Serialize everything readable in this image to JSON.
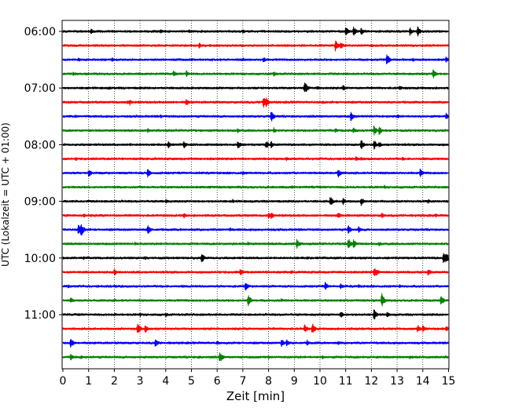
{
  "chart_data": {
    "type": "line",
    "title": "",
    "xlabel": "Zeit  [min]",
    "ylabel": "UTC (Lokalzeit = UTC + 01:00)",
    "xlim": [
      0,
      15
    ],
    "xticks": [
      "0",
      "1",
      "2",
      "3",
      "4",
      "5",
      "6",
      "7",
      "8",
      "9",
      "10",
      "11",
      "12",
      "13",
      "14",
      "15"
    ],
    "grid": "vertical dotted",
    "ytick_labels": [
      "06:00",
      "07:00",
      "08:00",
      "09:00",
      "10:00",
      "11:00"
    ],
    "trace_start_times": [
      "06:00",
      "06:15",
      "06:30",
      "06:45",
      "07:00",
      "07:15",
      "07:30",
      "07:45",
      "08:00",
      "08:15",
      "08:30",
      "08:45",
      "09:00",
      "09:15",
      "09:30",
      "09:45",
      "10:00",
      "10:15",
      "10:30",
      "10:45",
      "11:00",
      "11:15",
      "11:30",
      "11:45"
    ],
    "trace_colors": [
      "#000000",
      "#ff0000",
      "#0000ff",
      "#008000"
    ],
    "events": [
      [
        [
          1.1,
          0.5
        ],
        [
          3.8,
          0.4
        ],
        [
          4.9,
          0.35
        ],
        [
          7.0,
          0.4
        ],
        [
          11.0,
          0.8
        ],
        [
          11.3,
          0.9
        ],
        [
          11.6,
          0.6
        ],
        [
          13.5,
          0.7
        ],
        [
          13.8,
          0.8
        ]
      ],
      [
        [
          5.3,
          0.5
        ],
        [
          10.6,
          1.0
        ],
        [
          10.8,
          0.7
        ],
        [
          12.0,
          0.3
        ]
      ],
      [
        [
          0.6,
          0.35
        ],
        [
          1.9,
          0.4
        ],
        [
          7.0,
          0.35
        ],
        [
          7.8,
          0.5
        ],
        [
          12.6,
          1.0
        ],
        [
          13.6,
          0.35
        ],
        [
          14.9,
          0.5
        ]
      ],
      [
        [
          0.4,
          0.35
        ],
        [
          4.3,
          0.5
        ],
        [
          4.8,
          0.55
        ],
        [
          8.2,
          0.5
        ],
        [
          14.4,
          0.8
        ]
      ],
      [
        [
          1.8,
          0.3
        ],
        [
          3.0,
          0.3
        ],
        [
          9.4,
          1.1
        ],
        [
          9.9,
          0.4
        ],
        [
          10.9,
          0.5
        ],
        [
          13.1,
          0.4
        ]
      ],
      [
        [
          2.5,
          0.35
        ],
        [
          2.6,
          0.5
        ],
        [
          4.8,
          0.6
        ],
        [
          7.8,
          1.0
        ],
        [
          7.9,
          0.8
        ],
        [
          10.1,
          0.3
        ]
      ],
      [
        [
          0.5,
          0.3
        ],
        [
          3.8,
          0.35
        ],
        [
          8.1,
          0.9
        ],
        [
          11.2,
          0.8
        ],
        [
          13.0,
          0.4
        ],
        [
          14.9,
          0.6
        ]
      ],
      [
        [
          3.3,
          0.35
        ],
        [
          6.8,
          0.4
        ],
        [
          8.2,
          0.5
        ],
        [
          10.6,
          0.4
        ],
        [
          11.3,
          0.5
        ],
        [
          12.1,
          0.8
        ],
        [
          12.3,
          0.7
        ]
      ],
      [
        [
          2.6,
          0.3
        ],
        [
          4.1,
          0.6
        ],
        [
          4.7,
          0.6
        ],
        [
          6.8,
          0.8
        ],
        [
          7.9,
          0.7
        ],
        [
          8.1,
          0.6
        ],
        [
          11.6,
          0.8
        ],
        [
          12.1,
          0.8
        ],
        [
          12.3,
          0.5
        ]
      ],
      [
        [
          0.5,
          0.35
        ],
        [
          3.6,
          0.3
        ],
        [
          8.7,
          0.3
        ],
        [
          11.4,
          0.4
        ],
        [
          11.6,
          0.3
        ],
        [
          13.2,
          0.35
        ]
      ],
      [
        [
          1.0,
          0.7
        ],
        [
          3.3,
          0.8
        ],
        [
          7.0,
          0.35
        ],
        [
          10.7,
          0.8
        ],
        [
          13.9,
          0.7
        ]
      ],
      [
        [
          2.0,
          0.3
        ],
        [
          5.7,
          0.3
        ],
        [
          8.9,
          0.3
        ],
        [
          9.7,
          0.3
        ],
        [
          12.5,
          0.35
        ]
      ],
      [
        [
          4.0,
          0.4
        ],
        [
          6.6,
          0.35
        ],
        [
          10.4,
          0.8
        ],
        [
          10.9,
          0.6
        ],
        [
          11.6,
          0.7
        ],
        [
          14.2,
          0.4
        ]
      ],
      [
        [
          0.8,
          0.4
        ],
        [
          4.7,
          0.5
        ],
        [
          8.0,
          0.5
        ],
        [
          8.1,
          0.6
        ],
        [
          10.7,
          0.6
        ],
        [
          12.4,
          0.5
        ],
        [
          14.5,
          0.3
        ]
      ],
      [
        [
          0.6,
          0.9
        ],
        [
          0.7,
          1.1
        ],
        [
          3.3,
          0.8
        ],
        [
          6.5,
          0.35
        ],
        [
          11.1,
          0.7
        ],
        [
          11.5,
          0.6
        ]
      ],
      [
        [
          2.8,
          0.35
        ],
        [
          7.2,
          0.35
        ],
        [
          9.1,
          0.8
        ],
        [
          11.1,
          0.9
        ],
        [
          11.3,
          0.7
        ],
        [
          12.3,
          0.4
        ]
      ],
      [
        [
          0.8,
          0.3
        ],
        [
          3.2,
          0.35
        ],
        [
          5.4,
          0.8
        ],
        [
          9.5,
          0.3
        ],
        [
          14.8,
          1.1
        ],
        [
          14.9,
          0.9
        ]
      ],
      [
        [
          2.0,
          0.6
        ],
        [
          6.9,
          0.6
        ],
        [
          8.9,
          0.35
        ],
        [
          12.1,
          0.8
        ],
        [
          12.2,
          0.6
        ],
        [
          14.2,
          0.6
        ]
      ],
      [
        [
          0.2,
          0.35
        ],
        [
          7.1,
          0.7
        ],
        [
          10.2,
          0.7
        ],
        [
          10.8,
          0.5
        ],
        [
          11.5,
          0.35
        ],
        [
          13.1,
          0.3
        ]
      ],
      [
        [
          0.3,
          0.5
        ],
        [
          2.0,
          0.35
        ],
        [
          7.2,
          1.0
        ],
        [
          8.5,
          0.35
        ],
        [
          12.4,
          1.1
        ],
        [
          14.7,
          0.9
        ]
      ],
      [
        [
          2.0,
          0.3
        ],
        [
          3.0,
          0.35
        ],
        [
          4.0,
          0.4
        ],
        [
          10.8,
          0.6
        ],
        [
          12.1,
          0.9
        ],
        [
          12.6,
          0.5
        ]
      ],
      [
        [
          2.9,
          1.0
        ],
        [
          3.2,
          0.7
        ],
        [
          9.4,
          0.7
        ],
        [
          9.7,
          0.9
        ],
        [
          13.8,
          0.7
        ],
        [
          14.0,
          0.6
        ],
        [
          14.9,
          0.5
        ]
      ],
      [
        [
          0.3,
          0.9
        ],
        [
          3.6,
          0.8
        ],
        [
          6.0,
          0.4
        ],
        [
          8.5,
          0.7
        ],
        [
          8.7,
          0.6
        ],
        [
          9.5,
          0.5
        ],
        [
          10.7,
          0.35
        ]
      ],
      [
        [
          0.3,
          0.6
        ],
        [
          0.7,
          0.35
        ],
        [
          5.3,
          0.3
        ],
        [
          6.1,
          0.9
        ],
        [
          8.0,
          0.35
        ],
        [
          10.1,
          0.35
        ],
        [
          13.5,
          0.3
        ]
      ]
    ]
  }
}
